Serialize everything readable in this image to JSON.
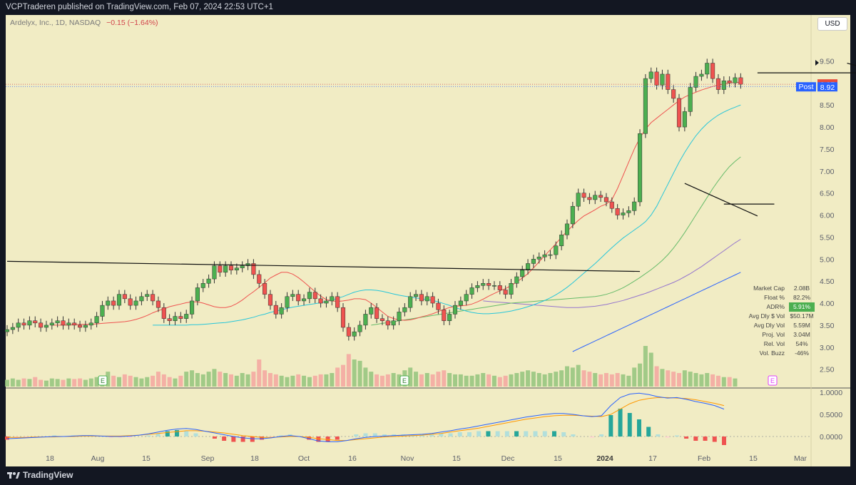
{
  "header": {
    "publish_text": "VCPTraderen published on TradingView.com, Feb 07, 2024 22:53 UTC+1",
    "symbol_text": "Ardelyx, Inc., 1D, NASDAQ",
    "change_text": "−0.15 (−1.64%)",
    "currency_button": "USD"
  },
  "footer": {
    "brand": "TradingView"
  },
  "price_labels": {
    "last": "8.97",
    "post_tag": "Post",
    "post": "8.92"
  },
  "stats_table": [
    {
      "label": "Market Cap",
      "value": "2.08B",
      "highlight": false
    },
    {
      "label": "Float %",
      "value": "82.2%",
      "highlight": false
    },
    {
      "label": "ADR%",
      "value": "5.91%",
      "highlight": true
    },
    {
      "label": "Avg Dly $ Vol",
      "value": "$50.17M",
      "highlight": false
    },
    {
      "label": "Avg Dly Vol",
      "value": "5.59M",
      "highlight": false
    },
    {
      "label": "Proj. Vol",
      "value": "3.04M",
      "highlight": false
    },
    {
      "label": "Rel. Vol",
      "value": "54%",
      "highlight": false
    },
    {
      "label": "Vol. Buzz",
      "value": "-46%",
      "highlight": false
    }
  ],
  "earnings_markers": [
    {
      "label": "E",
      "date": "2023-08-03"
    },
    {
      "label": "E",
      "date": "2023-11-02"
    },
    {
      "label": "E",
      "date": "2024-02-22"
    }
  ],
  "colors": {
    "background": "#f1ecc4",
    "up": "#4caf50",
    "down": "#ef5350",
    "upper_wick_body_yellow": "#ffeb3b",
    "ma10": "#ef5350",
    "ma21": "#26c6da",
    "ma50": "#66bb6a",
    "ma150": "#9575cd",
    "ma200": "#2962ff",
    "rs_line": "#2962ff",
    "rs_signal": "#ff9800"
  },
  "chart_data": {
    "type": "candlestick",
    "x_ticks": [
      "18",
      "Aug",
      "15",
      "Sep",
      "18",
      "Oct",
      "16",
      "Nov",
      "15",
      "Dec",
      "15",
      "2024",
      "17",
      "Feb",
      "15",
      "Mar"
    ],
    "y_ticks": [
      "9.50",
      "9.00",
      "8.50",
      "8.00",
      "7.50",
      "7.00",
      "6.50",
      "6.00",
      "5.50",
      "5.00",
      "4.50",
      "4.00",
      "3.50",
      "3.00",
      "2.50"
    ],
    "ylim": [
      2.3,
      9.75
    ],
    "oscillator_ticks": [
      "1.0000",
      "0.5000",
      "0.0000"
    ],
    "oscillator_ylim": [
      -0.2,
      1.1
    ],
    "closes": [
      3.4,
      3.45,
      3.55,
      3.5,
      3.6,
      3.55,
      3.45,
      3.5,
      3.55,
      3.6,
      3.5,
      3.55,
      3.5,
      3.45,
      3.5,
      3.55,
      3.7,
      3.95,
      4.05,
      3.95,
      4.2,
      4.1,
      3.95,
      4.05,
      4.15,
      4.2,
      4.05,
      3.9,
      3.65,
      3.6,
      3.7,
      3.65,
      3.75,
      4.05,
      4.35,
      4.45,
      4.55,
      4.85,
      4.7,
      4.85,
      4.75,
      4.8,
      4.85,
      4.9,
      4.65,
      4.45,
      4.2,
      3.95,
      3.75,
      3.9,
      4.15,
      4.2,
      4.05,
      4.1,
      4.25,
      4.1,
      4.0,
      4.05,
      4.15,
      3.9,
      3.45,
      3.25,
      3.35,
      3.5,
      3.75,
      3.9,
      3.65,
      3.6,
      3.5,
      3.6,
      3.8,
      3.9,
      4.15,
      4.2,
      4.05,
      4.15,
      4.0,
      3.85,
      3.6,
      3.75,
      3.95,
      4.05,
      4.2,
      4.35,
      4.4,
      4.45,
      4.4,
      4.4,
      4.3,
      4.2,
      4.45,
      4.6,
      4.75,
      4.9,
      5.0,
      5.05,
      5.1,
      5.1,
      5.3,
      5.55,
      5.8,
      6.2,
      6.5,
      6.4,
      6.35,
      6.45,
      6.4,
      6.3,
      6.15,
      6.0,
      6.05,
      6.1,
      6.3,
      7.85,
      9.1,
      9.25,
      8.95,
      9.2,
      8.85,
      8.65,
      8.0,
      8.35,
      8.9,
      9.15,
      9.2,
      9.45,
      9.1,
      8.85,
      9.05,
      9.0,
      9.12,
      8.97
    ],
    "ma10": [
      3.5,
      3.5,
      3.5,
      3.5,
      3.51,
      3.52,
      3.52,
      3.52,
      3.53,
      3.54,
      3.55,
      3.56,
      3.57,
      3.58,
      3.6,
      3.63,
      3.67,
      3.72,
      3.78,
      3.83,
      3.87,
      3.92,
      3.95,
      3.98,
      4.01,
      4.03,
      4.03,
      4.0,
      3.96,
      3.92,
      3.9,
      3.9,
      3.93,
      3.99,
      4.07,
      4.17,
      4.26,
      4.36,
      4.46,
      4.57,
      4.64,
      4.7,
      4.7,
      4.66,
      4.58,
      4.48,
      4.37,
      4.26,
      4.16,
      4.08,
      4.05,
      4.04,
      4.05,
      4.07,
      4.1,
      4.1,
      4.08,
      4.0,
      3.9,
      3.8,
      3.7,
      3.65,
      3.62,
      3.61,
      3.62,
      3.65,
      3.69,
      3.72,
      3.76,
      3.81,
      3.86,
      3.9,
      3.93,
      3.94,
      3.95,
      3.98,
      4.03,
      4.09,
      4.16,
      4.22,
      4.28,
      4.33,
      4.4,
      4.48,
      4.57,
      4.67,
      4.8,
      4.94,
      5.08,
      5.21,
      5.35,
      5.5,
      5.63,
      5.76,
      5.88,
      5.98,
      6.05,
      6.12,
      6.2,
      6.25,
      6.35,
      6.6,
      6.9,
      7.2,
      7.5,
      7.75,
      7.95,
      8.1,
      8.2,
      8.3,
      8.4,
      8.5,
      8.6,
      8.68,
      8.74,
      8.79,
      8.84,
      8.88,
      8.92,
      8.95,
      8.98,
      9.0,
      9.01,
      9.02
    ],
    "ma21": [
      3.5,
      3.5,
      3.5,
      3.5,
      3.5,
      3.5,
      3.5,
      3.51,
      3.51,
      3.52,
      3.53,
      3.54,
      3.55,
      3.56,
      3.58,
      3.6,
      3.62,
      3.65,
      3.68,
      3.72,
      3.75,
      3.79,
      3.82,
      3.85,
      3.88,
      3.91,
      3.93,
      3.95,
      3.97,
      3.99,
      4.01,
      4.04,
      4.07,
      4.11,
      4.15,
      4.2,
      4.25,
      4.28,
      4.3,
      4.3,
      4.29,
      4.27,
      4.24,
      4.21,
      4.18,
      4.16,
      4.14,
      4.12,
      4.1,
      4.08,
      4.06,
      4.03,
      3.99,
      3.95,
      3.9,
      3.86,
      3.82,
      3.79,
      3.77,
      3.76,
      3.76,
      3.77,
      3.78,
      3.8,
      3.82,
      3.85,
      3.88,
      3.92,
      3.96,
      4.01,
      4.06,
      4.12,
      4.19,
      4.27,
      4.36,
      4.46,
      4.57,
      4.68,
      4.79,
      4.9,
      5.02,
      5.14,
      5.26,
      5.37,
      5.48,
      5.57,
      5.66,
      5.75,
      5.85,
      6.0,
      6.2,
      6.45,
      6.7,
      6.95,
      7.2,
      7.42,
      7.62,
      7.8,
      7.95,
      8.08,
      8.18,
      8.27,
      8.34,
      8.4,
      8.45,
      8.5
    ],
    "ma50": [
      3.5,
      3.52,
      3.54,
      3.56,
      3.58,
      3.6,
      3.62,
      3.64,
      3.66,
      3.68,
      3.7,
      3.72,
      3.74,
      3.76,
      3.78,
      3.8,
      3.82,
      3.84,
      3.86,
      3.88,
      3.9,
      3.92,
      3.94,
      3.96,
      3.98,
      4.0,
      4.01,
      4.02,
      4.03,
      4.04,
      4.05,
      4.06,
      4.07,
      4.08,
      4.09,
      4.1,
      4.11,
      4.12,
      4.13,
      4.14,
      4.15,
      4.17,
      4.2,
      4.24,
      4.29,
      4.35,
      4.42,
      4.5,
      4.58,
      4.67,
      4.76,
      4.86,
      4.97,
      5.1,
      5.25,
      5.42,
      5.6,
      5.8,
      6.0,
      6.2,
      6.4,
      6.6,
      6.78,
      6.95,
      7.1,
      7.22,
      7.32
    ],
    "ma150": [
      4.05,
      4.04,
      4.03,
      4.02,
      4.01,
      4.0,
      3.99,
      3.98,
      3.97,
      3.96,
      3.95,
      3.94,
      3.93,
      3.92,
      3.91,
      3.9,
      3.9,
      3.9,
      3.91,
      3.92,
      3.93,
      3.95,
      3.97,
      4.0,
      4.03,
      4.06,
      4.1,
      4.14,
      4.18,
      4.22,
      4.27,
      4.32,
      4.37,
      4.42,
      4.47,
      4.53,
      4.6,
      4.67,
      4.75,
      4.83,
      4.92,
      5.01,
      5.1,
      5.19,
      5.28,
      5.37,
      5.45
    ],
    "ma200": [
      2.9,
      2.96,
      3.02,
      3.08,
      3.14,
      3.2,
      3.26,
      3.32,
      3.38,
      3.44,
      3.5,
      3.56,
      3.62,
      3.68,
      3.74,
      3.8,
      3.86,
      3.92,
      3.98,
      4.04,
      4.1,
      4.16,
      4.22,
      4.28,
      4.34,
      4.4,
      4.46,
      4.52,
      4.58,
      4.64,
      4.7
    ],
    "trendlines": [
      {
        "name": "long-term resistance",
        "from": [
          "2023-07-03",
          4.95
        ],
        "to": [
          "2023-12-07",
          4.72
        ]
      },
      {
        "name": "december downtrend",
        "from": [
          "2023-12-19",
          6.72
        ],
        "to": [
          "2024-01-05",
          5.98
        ]
      },
      {
        "name": "december base top",
        "from": [
          "2023-12-28",
          6.25
        ],
        "to": [
          "2024-01-10",
          6.25
        ]
      },
      {
        "name": "january shelf",
        "from": [
          "2024-01-05",
          9.23
        ],
        "to": [
          "2024-02-12",
          9.23
        ]
      },
      {
        "name": "february downtrend",
        "from": [
          "2024-01-29",
          9.45
        ],
        "to": [
          "2024-02-12",
          9.1
        ]
      }
    ],
    "volume_relative": [
      0.25,
      0.3,
      0.25,
      0.3,
      0.28,
      0.35,
      0.25,
      0.22,
      0.3,
      0.28,
      0.25,
      0.3,
      0.28,
      0.3,
      0.25,
      0.3,
      0.35,
      0.4,
      0.55,
      0.4,
      0.35,
      0.45,
      0.4,
      0.35,
      0.3,
      0.35,
      0.4,
      0.55,
      0.45,
      0.35,
      0.3,
      0.4,
      0.55,
      0.6,
      0.5,
      0.45,
      0.55,
      0.65,
      0.55,
      0.5,
      0.45,
      0.4,
      0.5,
      0.45,
      0.55,
      1.0,
      0.6,
      0.5,
      0.45,
      0.4,
      0.35,
      0.4,
      0.45,
      0.4,
      0.35,
      0.4,
      0.45,
      0.45,
      0.5,
      0.7,
      0.8,
      1.2,
      1.0,
      0.95,
      0.7,
      0.55,
      0.45,
      0.4,
      0.45,
      0.5,
      0.45,
      0.6,
      0.7,
      0.55,
      0.45,
      0.5,
      0.45,
      0.55,
      0.6,
      0.5,
      0.45,
      0.45,
      0.4,
      0.4,
      0.45,
      0.5,
      0.45,
      0.4,
      0.35,
      0.4,
      0.45,
      0.5,
      0.55,
      0.6,
      0.55,
      0.5,
      0.45,
      0.5,
      0.55,
      0.6,
      0.75,
      0.7,
      0.8,
      0.6,
      0.55,
      0.5,
      0.45,
      0.5,
      0.45,
      0.5,
      0.45,
      0.4,
      0.7,
      0.85,
      1.5,
      1.25,
      0.75,
      0.65,
      0.6,
      0.55,
      0.5,
      0.6,
      0.55,
      0.5,
      0.45,
      0.5,
      0.45,
      0.4,
      0.35,
      0.35,
      0.3
    ],
    "oscillator_rs": [
      -0.05,
      -0.04,
      -0.03,
      -0.02,
      -0.01,
      0.0,
      0.0,
      0.01,
      0.02,
      0.02,
      0.01,
      0.0,
      0.0,
      0.01,
      0.03,
      0.06,
      0.1,
      0.14,
      0.17,
      0.18,
      0.16,
      0.12,
      0.08,
      0.04,
      0.0,
      -0.03,
      -0.05,
      -0.05,
      -0.03,
      0.0,
      0.02,
      0.0,
      -0.05,
      -0.1,
      -0.12,
      -0.12,
      -0.09,
      -0.05,
      -0.02,
      0.0,
      0.01,
      0.02,
      0.03,
      0.04,
      0.05,
      0.07,
      0.1,
      0.13,
      0.17,
      0.2,
      0.24,
      0.28,
      0.32,
      0.36,
      0.4,
      0.44,
      0.47,
      0.5,
      0.52,
      0.52,
      0.5,
      0.47,
      0.45,
      0.47,
      0.7,
      0.88,
      0.96,
      0.98,
      0.95,
      0.9,
      0.87,
      0.88,
      0.84,
      0.79,
      0.75,
      0.7,
      0.62
    ],
    "oscillator_signal": [
      -0.02,
      -0.02,
      -0.02,
      -0.01,
      -0.01,
      -0.01,
      0.0,
      0.0,
      0.01,
      0.01,
      0.01,
      0.01,
      0.01,
      0.02,
      0.03,
      0.05,
      0.07,
      0.09,
      0.11,
      0.13,
      0.13,
      0.12,
      0.1,
      0.08,
      0.05,
      0.02,
      0.0,
      -0.02,
      -0.02,
      -0.01,
      0.0,
      0.0,
      -0.02,
      -0.05,
      -0.07,
      -0.09,
      -0.09,
      -0.07,
      -0.05,
      -0.03,
      -0.01,
      0.0,
      0.01,
      0.02,
      0.03,
      0.05,
      0.07,
      0.1,
      0.13,
      0.16,
      0.19,
      0.23,
      0.27,
      0.31,
      0.35,
      0.39,
      0.42,
      0.45,
      0.47,
      0.48,
      0.48,
      0.47,
      0.46,
      0.45,
      0.5,
      0.62,
      0.74,
      0.82,
      0.86,
      0.88,
      0.88,
      0.87,
      0.86,
      0.83,
      0.79,
      0.75,
      0.7
    ]
  }
}
